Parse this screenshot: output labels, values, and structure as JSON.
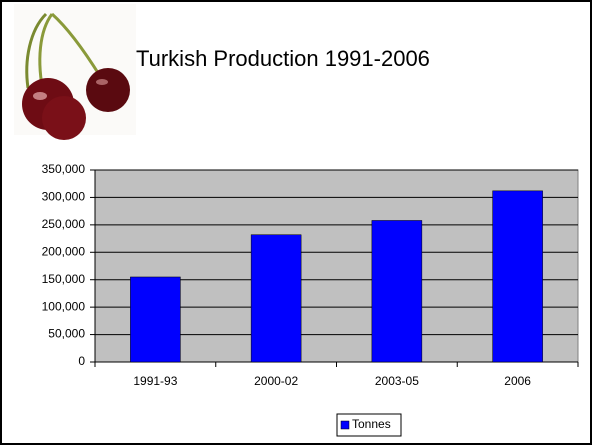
{
  "chart_data": {
    "type": "bar",
    "title": "Turkish Production 1991-2006",
    "categories": [
      "1991-93",
      "2000-02",
      "2003-05",
      "2006"
    ],
    "series": [
      {
        "name": "Tonnes",
        "color": "#0000ff",
        "values": [
          155000,
          232000,
          258000,
          312000
        ]
      }
    ],
    "ylim": [
      0,
      350000
    ],
    "yticks": [
      0,
      {
        "value": 50000,
        "label": "50,000"
      },
      {
        "value": 100000,
        "label": "100,000"
      },
      {
        "value": 150000,
        "label": "150,000"
      },
      {
        "value": 200000,
        "label": "200,000"
      },
      {
        "value": 250000,
        "label": "250,000"
      },
      {
        "value": 300000,
        "label": "300,000"
      },
      {
        "value": 350000,
        "label": "350,000"
      }
    ],
    "grid": true,
    "legend": "bottom"
  }
}
